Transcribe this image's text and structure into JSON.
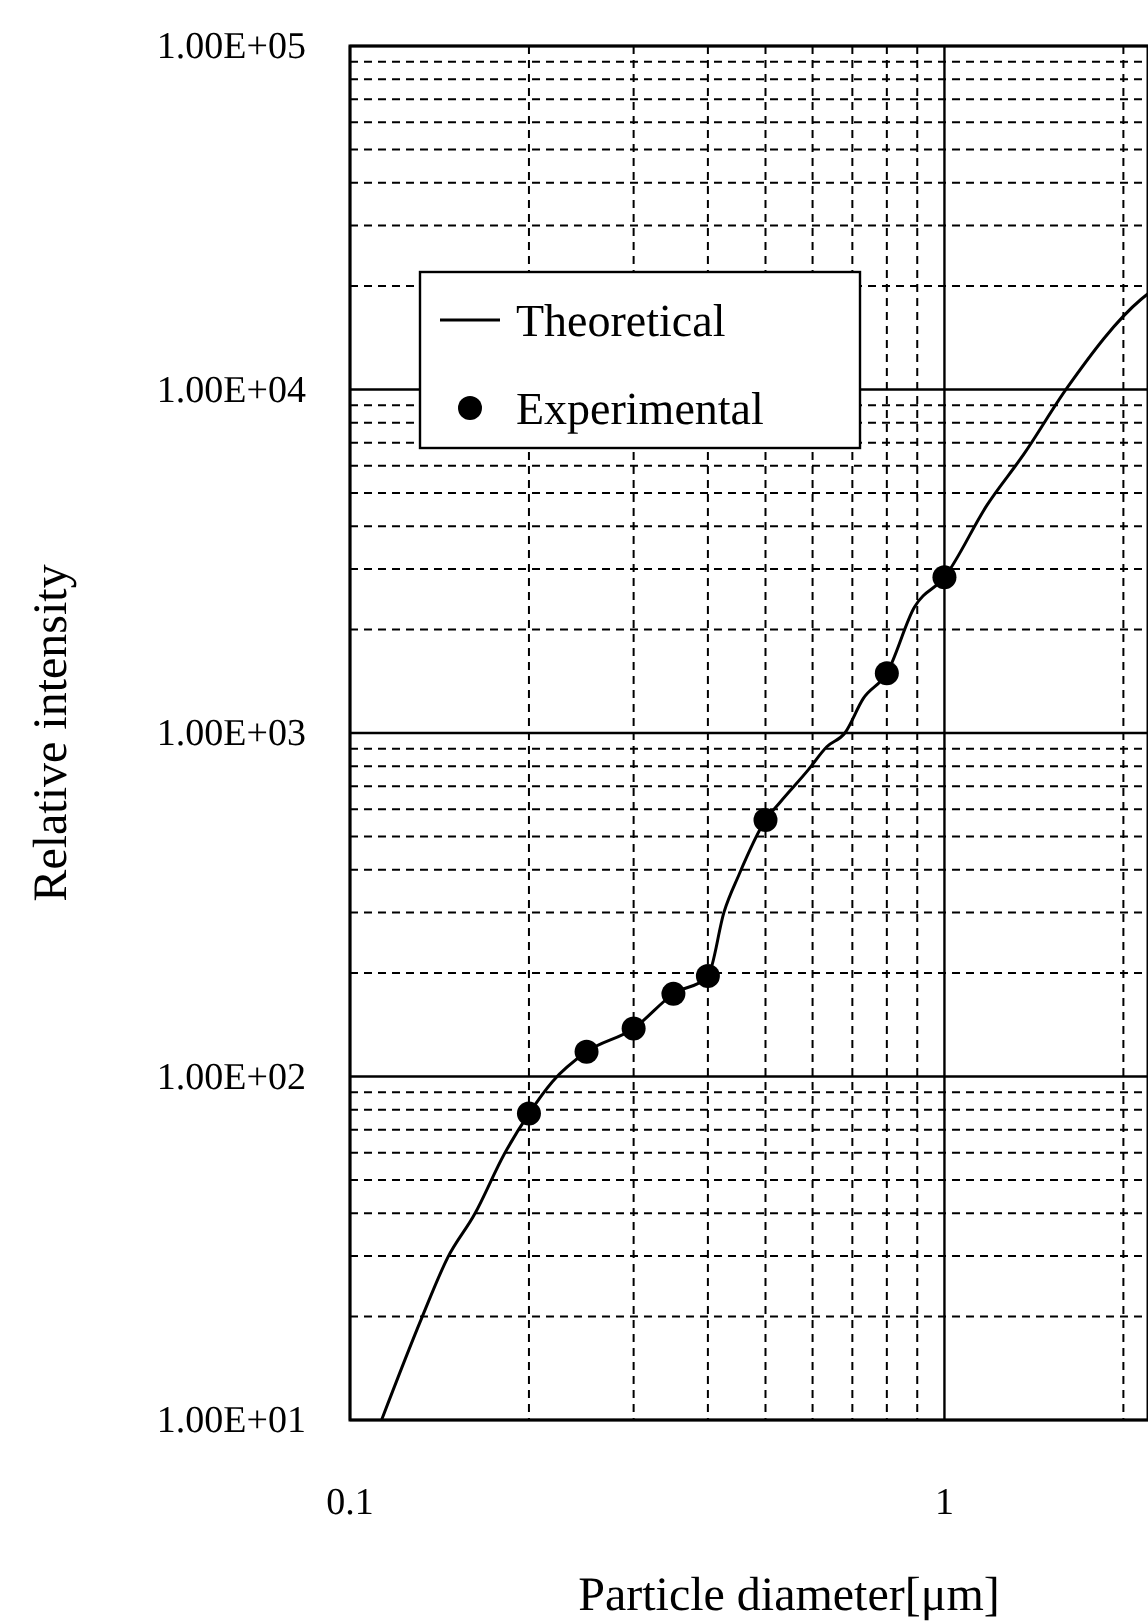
{
  "chart_data": {
    "type": "line",
    "xlabel": "Particle diameter[μm]",
    "ylabel": "Relative intensity",
    "log": "xy",
    "grid": true,
    "legend": "top left",
    "xlim": [
      0.1,
      2.2
    ],
    "ylim": [
      10,
      100000
    ],
    "xticks": [
      0.1,
      {
        "value": 0.2,
        "label": null
      },
      {
        "value": 0.3,
        "label": null
      },
      {
        "value": 0.4,
        "label": null
      },
      {
        "value": 0.5,
        "label": null
      },
      {
        "value": 0.6,
        "label": null
      },
      {
        "value": 0.7,
        "label": null
      },
      {
        "value": 0.8,
        "label": null
      },
      {
        "value": 0.9,
        "label": null
      },
      1,
      {
        "value": 2,
        "label": null
      }
    ],
    "yticks": [
      {
        "value": 10,
        "label": "1.00E+01"
      },
      {
        "value": 20,
        "label": null
      },
      {
        "value": 30,
        "label": null
      },
      {
        "value": 40,
        "label": null
      },
      {
        "value": 50,
        "label": null
      },
      {
        "value": 60,
        "label": null
      },
      {
        "value": 70,
        "label": null
      },
      {
        "value": 80,
        "label": null
      },
      {
        "value": 90,
        "label": null
      },
      {
        "value": 100,
        "label": "1.00E+02"
      },
      {
        "value": 200,
        "label": null
      },
      {
        "value": 300,
        "label": null
      },
      {
        "value": 400,
        "label": null
      },
      {
        "value": 500,
        "label": null
      },
      {
        "value": 600,
        "label": null
      },
      {
        "value": 700,
        "label": null
      },
      {
        "value": 800,
        "label": null
      },
      {
        "value": 900,
        "label": null
      },
      {
        "value": 1000,
        "label": "1.00E+03"
      },
      {
        "value": 2000,
        "label": null
      },
      {
        "value": 3000,
        "label": null
      },
      {
        "value": 4000,
        "label": null
      },
      {
        "value": 5000,
        "label": null
      },
      {
        "value": 6000,
        "label": null
      },
      {
        "value": 7000,
        "label": null
      },
      {
        "value": 8000,
        "label": null
      },
      {
        "value": 9000,
        "label": null
      },
      {
        "value": 10000,
        "label": "1.00E+04"
      },
      {
        "value": 20000,
        "label": null
      },
      {
        "value": 30000,
        "label": null
      },
      {
        "value": 40000,
        "label": null
      },
      {
        "value": 50000,
        "label": null
      },
      {
        "value": 60000,
        "label": null
      },
      {
        "value": 70000,
        "label": null
      },
      {
        "value": 80000,
        "label": null
      },
      {
        "value": 90000,
        "label": null
      },
      {
        "value": 100000,
        "label": "1.00E+05"
      }
    ],
    "series": [
      {
        "name": "Theoretical",
        "color": "#000000",
        "marker": "none",
        "line_style": "solid",
        "x": [
          0.113,
          0.132,
          0.146,
          0.162,
          0.182,
          0.2,
          0.219,
          0.25,
          0.3,
          0.35,
          0.4,
          0.426,
          0.451,
          0.5,
          0.53,
          0.59,
          0.634,
          0.68,
          0.73,
          0.8,
          0.89,
          1.0,
          1.18,
          1.36,
          1.61,
          2.14,
          2.2
        ],
        "values": [
          10,
          19.8,
          29.7,
          39.7,
          59.7,
          78,
          96.6,
          118,
          138,
          174,
          196,
          302,
          386,
          558,
          631,
          781,
          912,
          1000,
          1259,
          1493,
          2323,
          2840,
          4613,
          6480,
          10140,
          18280,
          19000
        ]
      },
      {
        "name": "Experimental",
        "type": "scatter",
        "color": "#000000",
        "marker": "circle",
        "x": [
          0.2,
          0.25,
          0.3,
          0.35,
          0.4,
          0.5,
          0.8,
          1.0
        ],
        "values": [
          78,
          118,
          138,
          174,
          196,
          558,
          1493,
          2840
        ]
      }
    ]
  }
}
